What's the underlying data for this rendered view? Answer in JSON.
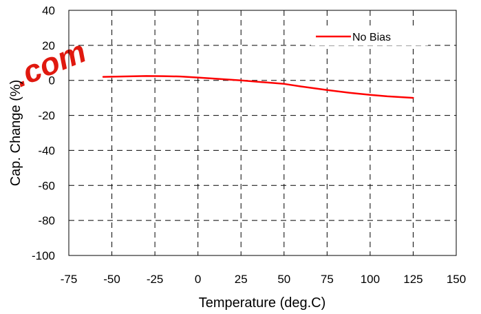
{
  "chart_data": {
    "type": "line",
    "xlabel": "Temperature (deg.C)",
    "ylabel": "Cap. Change (%)",
    "xlim": [
      -75,
      150
    ],
    "ylim": [
      -100,
      40
    ],
    "xticks": [
      "-75",
      "-50",
      "-25",
      "0",
      "25",
      "50",
      "75",
      "100",
      "125",
      "150"
    ],
    "yticks": [
      "40",
      "20",
      "0",
      "-20",
      "-40",
      "-60",
      "-80",
      "-100"
    ],
    "grid": true,
    "legend_position": "top-right",
    "series": [
      {
        "name": "No Bias",
        "color": "#ff0000",
        "x": [
          -55,
          -40,
          -30,
          -20,
          -10,
          0,
          10,
          25,
          40,
          50,
          60,
          75,
          90,
          100,
          110,
          125
        ],
        "y": [
          2,
          2.3,
          2.5,
          2.4,
          2.2,
          1.6,
          1,
          0,
          -1.2,
          -2,
          -3.5,
          -5.5,
          -7.3,
          -8.3,
          -9.1,
          -10
        ]
      }
    ]
  },
  "watermark": {
    "text": ".com",
    "color": "#e0190f"
  }
}
